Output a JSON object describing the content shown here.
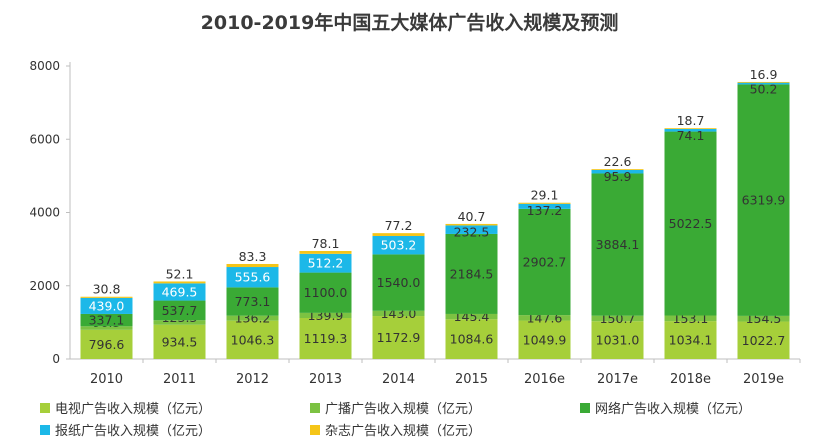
{
  "chart_data": {
    "type": "bar",
    "stacked": true,
    "title": "2010-2019年中国五大媒体广告收入规模及预测",
    "categories": [
      "2010",
      "2011",
      "2012",
      "2013",
      "2014",
      "2015",
      "2016e",
      "2017e",
      "2018e",
      "2019e"
    ],
    "ylim": [
      0,
      8000
    ],
    "yticks": [
      0,
      2000,
      4000,
      6000,
      8000
    ],
    "grid": false,
    "legend_position": "bottom",
    "series": [
      {
        "name": "电视广告收入规模（亿元）",
        "color": "#a6cf3a",
        "values": [
          796.6,
          934.5,
          1046.3,
          1119.3,
          1172.9,
          1084.6,
          1049.9,
          1031.0,
          1034.1,
          1022.7
        ]
      },
      {
        "name": "广播广告收入规模（亿元）",
        "color": "#7cc242",
        "values": [
          96.3,
          123.3,
          136.2,
          139.9,
          143.0,
          145.4,
          147.6,
          150.7,
          153.1,
          154.5
        ]
      },
      {
        "name": "网络广告收入规模（亿元）",
        "color": "#3aaa35",
        "values": [
          337.1,
          537.7,
          773.1,
          1100.0,
          1540.0,
          2184.5,
          2902.7,
          3884.1,
          5022.5,
          6319.9
        ]
      },
      {
        "name": "报纸广告收入规模（亿元）",
        "color": "#1cb8e8",
        "values": [
          439.0,
          469.5,
          555.6,
          512.2,
          503.2,
          232.5,
          137.2,
          95.9,
          74.1,
          50.2
        ]
      },
      {
        "name": "杂志广告收入规模（亿元）",
        "color": "#f5c518",
        "values": [
          30.8,
          52.1,
          83.3,
          78.1,
          77.2,
          40.7,
          29.1,
          22.6,
          18.7,
          16.9
        ]
      }
    ],
    "value_labels": [
      [
        "796.6",
        "934.5",
        "1046.3",
        "1119.3",
        "1172.9",
        "1084.6",
        "1049.9",
        "1031.0",
        "1034.1",
        "1022.7"
      ],
      [
        "96.3",
        "123.3",
        "136.2",
        "139.9",
        "143.0",
        "145.4",
        "147.6",
        "150.7",
        "153.1",
        "154.5"
      ],
      [
        "337.1",
        "537.7",
        "773.1",
        "1100.0",
        "1540.0",
        "2184.5",
        "2902.7",
        "3884.1",
        "5022.5",
        "6319.9"
      ],
      [
        "439.0",
        "469.5",
        "555.6",
        "512.2",
        "503.2",
        "232.5",
        "137.2",
        "95.9",
        "74.1",
        "50.2"
      ],
      [
        "30.8",
        "52.1",
        "83.3",
        "78.1",
        "77.2",
        "40.7",
        "29.1",
        "22.6",
        "18.7",
        "16.9"
      ]
    ]
  }
}
